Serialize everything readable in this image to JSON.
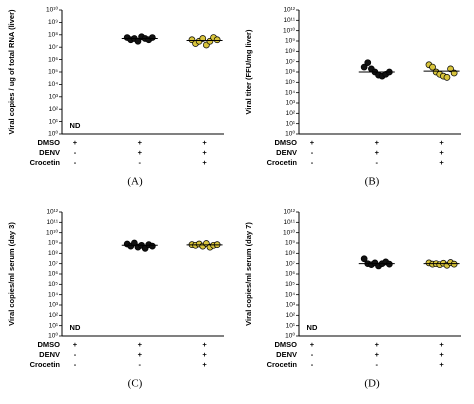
{
  "chart_data": [
    {
      "type": "dot",
      "panel": "(A)",
      "ylabel": "Viral copies / ug of total RNA (liver)",
      "log": true,
      "ylim": [
        1,
        10000000000
      ],
      "yticks": [
        {
          "value": 1,
          "label": "10⁰"
        },
        {
          "value": 10,
          "label": "10¹"
        },
        {
          "value": 100,
          "label": "10²"
        },
        {
          "value": 1000,
          "label": "10³"
        },
        {
          "value": 10000,
          "label": "10⁴"
        },
        {
          "value": 100000,
          "label": "10⁵"
        },
        {
          "value": 1000000,
          "label": "10⁶"
        },
        {
          "value": 10000000,
          "label": "10⁷"
        },
        {
          "value": 100000000,
          "label": "10⁸"
        },
        {
          "value": 1000000000,
          "label": "10⁹"
        },
        {
          "value": 10000000000,
          "label": "10¹⁰"
        }
      ],
      "groups": [
        {
          "label": "ND"
        },
        {
          "color": "#111111",
          "values": [
            60000000,
            40000000,
            50000000,
            30000000,
            70000000,
            50000000,
            40000000,
            60000000
          ],
          "mean": 50000000
        },
        {
          "color": "#d8c43c",
          "values": [
            40000000,
            20000000,
            30000000,
            50000000,
            15000000,
            30000000,
            60000000,
            40000000
          ],
          "mean": 35000000
        }
      ],
      "treatment_table": [
        {
          "label": "DMSO",
          "marks": [
            "+",
            "+",
            "+"
          ]
        },
        {
          "label": "DENV",
          "marks": [
            "-",
            "+",
            "+"
          ]
        },
        {
          "label": "Crocetin",
          "marks": [
            "-",
            "-",
            "+"
          ]
        }
      ]
    },
    {
      "type": "dot",
      "panel": "(B)",
      "ylabel": "Viral titer (FFU/mg liver)",
      "log": true,
      "ylim": [
        1,
        1000000000000
      ],
      "yticks": [
        {
          "value": 1,
          "label": "10⁰"
        },
        {
          "value": 10,
          "label": "10¹"
        },
        {
          "value": 100,
          "label": "10²"
        },
        {
          "value": 1000,
          "label": "10³"
        },
        {
          "value": 10000,
          "label": "10⁴"
        },
        {
          "value": 100000,
          "label": "10⁵"
        },
        {
          "value": 1000000,
          "label": "10⁶"
        },
        {
          "value": 10000000,
          "label": "10⁷"
        },
        {
          "value": 100000000,
          "label": "10⁸"
        },
        {
          "value": 1000000000,
          "label": "10⁹"
        },
        {
          "value": 10000000000,
          "label": "10¹⁰"
        },
        {
          "value": 100000000000,
          "label": "10¹¹"
        },
        {
          "value": 1000000000000,
          "label": "10¹²"
        }
      ],
      "groups": [
        null,
        {
          "color": "#111111",
          "values": [
            3000000,
            8000000,
            2000000,
            1000000,
            500000,
            400000,
            600000,
            1000000
          ],
          "mean": 1000000
        },
        {
          "color": "#d8c43c",
          "values": [
            5000000,
            3000000,
            1000000,
            600000,
            400000,
            300000,
            2000000,
            800000
          ],
          "mean": 1200000
        }
      ],
      "treatment_table": [
        {
          "label": "DMSO",
          "marks": [
            "+",
            "+",
            "+"
          ]
        },
        {
          "label": "DENV",
          "marks": [
            "-",
            "+",
            "+"
          ]
        },
        {
          "label": "Crocetin",
          "marks": [
            "-",
            "-",
            "+"
          ]
        }
      ]
    },
    {
      "type": "dot",
      "panel": "(C)",
      "ylabel": "Viral copies/ml serum (day 3)",
      "log": true,
      "ylim": [
        1,
        1000000000000
      ],
      "yticks": [
        {
          "value": 1,
          "label": "10⁰"
        },
        {
          "value": 10,
          "label": "10¹"
        },
        {
          "value": 100,
          "label": "10²"
        },
        {
          "value": 1000,
          "label": "10³"
        },
        {
          "value": 10000,
          "label": "10⁴"
        },
        {
          "value": 100000,
          "label": "10⁵"
        },
        {
          "value": 1000000,
          "label": "10⁶"
        },
        {
          "value": 10000000,
          "label": "10⁷"
        },
        {
          "value": 100000000,
          "label": "10⁸"
        },
        {
          "value": 1000000000,
          "label": "10⁹"
        },
        {
          "value": 10000000000,
          "label": "10¹⁰"
        },
        {
          "value": 100000000000,
          "label": "10¹¹"
        },
        {
          "value": 1000000000000,
          "label": "10¹²"
        }
      ],
      "groups": [
        {
          "label": "ND"
        },
        {
          "color": "#111111",
          "values": [
            800000000,
            500000000,
            1000000000,
            400000000,
            600000000,
            300000000,
            700000000,
            500000000
          ],
          "mean": 600000000
        },
        {
          "color": "#d8c43c",
          "values": [
            700000000,
            600000000,
            800000000,
            500000000,
            900000000,
            400000000,
            600000000,
            700000000
          ],
          "mean": 650000000
        }
      ],
      "treatment_table": [
        {
          "label": "DMSO",
          "marks": [
            "+",
            "+",
            "+"
          ]
        },
        {
          "label": "DENV",
          "marks": [
            "-",
            "+",
            "+"
          ]
        },
        {
          "label": "Crocetin",
          "marks": [
            "-",
            "-",
            "+"
          ]
        }
      ]
    },
    {
      "type": "dot",
      "panel": "(D)",
      "ylabel": "Viral copies/ml serum (day 7)",
      "log": true,
      "ylim": [
        1,
        1000000000000
      ],
      "yticks": [
        {
          "value": 1,
          "label": "10⁰"
        },
        {
          "value": 10,
          "label": "10¹"
        },
        {
          "value": 100,
          "label": "10²"
        },
        {
          "value": 1000,
          "label": "10³"
        },
        {
          "value": 10000,
          "label": "10⁴"
        },
        {
          "value": 100000,
          "label": "10⁵"
        },
        {
          "value": 1000000,
          "label": "10⁶"
        },
        {
          "value": 10000000,
          "label": "10⁷"
        },
        {
          "value": 100000000,
          "label": "10⁸"
        },
        {
          "value": 1000000000,
          "label": "10⁹"
        },
        {
          "value": 10000000000,
          "label": "10¹⁰"
        },
        {
          "value": 100000000000,
          "label": "10¹¹"
        },
        {
          "value": 1000000000000,
          "label": "10¹²"
        }
      ],
      "groups": [
        {
          "label": "ND"
        },
        {
          "color": "#111111",
          "values": [
            30000000,
            10000000,
            8000000,
            12000000,
            6000000,
            10000000,
            15000000,
            9000000
          ],
          "mean": 10000000
        },
        {
          "color": "#d8c43c",
          "values": [
            12000000,
            9000000,
            10000000,
            8000000,
            11000000,
            7000000,
            13000000,
            9000000
          ],
          "mean": 10000000
        }
      ],
      "treatment_table": [
        {
          "label": "DMSO",
          "marks": [
            "+",
            "+",
            "+"
          ]
        },
        {
          "label": "DENV",
          "marks": [
            "-",
            "+",
            "+"
          ]
        },
        {
          "label": "Crocetin",
          "marks": [
            "-",
            "-",
            "+"
          ]
        }
      ]
    }
  ]
}
